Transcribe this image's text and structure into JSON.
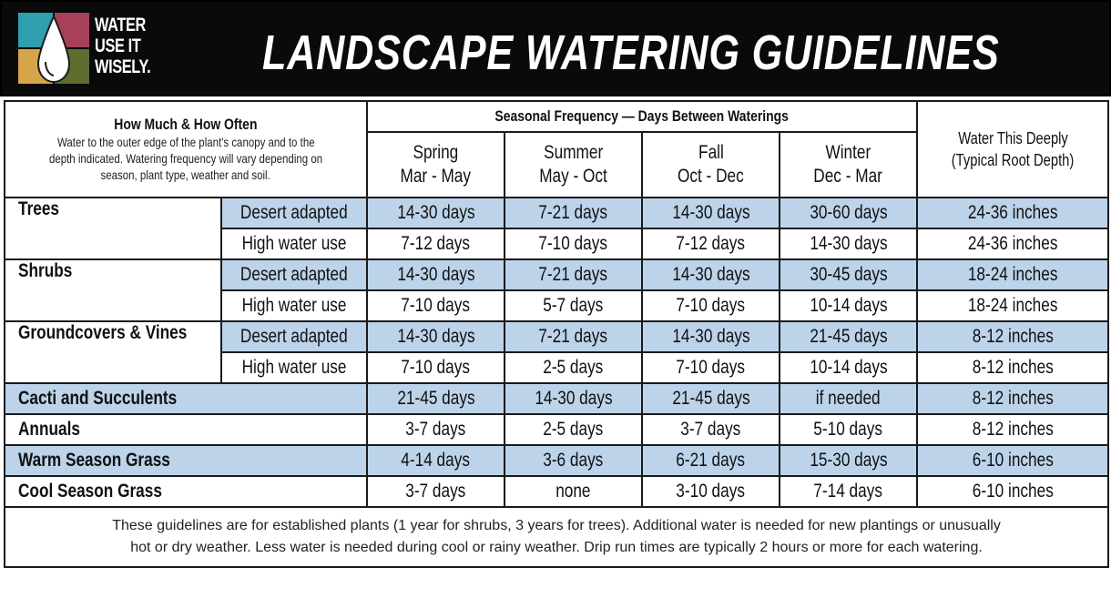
{
  "header": {
    "logo_lines": [
      "WATER",
      "USE IT",
      "WISELY."
    ],
    "logo_colors": [
      "#2f9fb0",
      "#a7405a",
      "#d6a548",
      "#5e6d2f"
    ],
    "title": "LANDSCAPE WATERING GUIDELINES"
  },
  "howmuch": {
    "title": "How Much & How Often",
    "lines": [
      "Water to the outer edge of the plant's canopy and to the",
      "depth indicated. Watering frequency will vary depending on",
      "season, plant type, weather and soil."
    ]
  },
  "seasonal": {
    "title": "Seasonal Frequency — Days Between Waterings",
    "seasons": [
      {
        "name": "Spring",
        "months": "Mar - May"
      },
      {
        "name": "Summer",
        "months": "May - Oct"
      },
      {
        "name": "Fall",
        "months": "Oct - Dec"
      },
      {
        "name": "Winter",
        "months": "Dec - Mar"
      }
    ]
  },
  "depth": {
    "title": "Water This Deeply",
    "subtitle": "(Typical Root Depth)"
  },
  "rows": {
    "trees": {
      "name": "Trees",
      "desert": {
        "label": "Desert adapted",
        "spring": "14-30 days",
        "summer": "7-21 days",
        "fall": "14-30 days",
        "winter": "30-60 days",
        "depth": "24-36 inches"
      },
      "high": {
        "label": "High water use",
        "spring": "7-12 days",
        "summer": "7-10 days",
        "fall": "7-12 days",
        "winter": "14-30 days",
        "depth": "24-36 inches"
      }
    },
    "shrubs": {
      "name": "Shrubs",
      "desert": {
        "label": "Desert adapted",
        "spring": "14-30 days",
        "summer": "7-21 days",
        "fall": "14-30 days",
        "winter": "30-45 days",
        "depth": "18-24 inches"
      },
      "high": {
        "label": "High water use",
        "spring": "7-10 days",
        "summer": "5-7 days",
        "fall": "7-10 days",
        "winter": "10-14 days",
        "depth": "18-24 inches"
      }
    },
    "ground": {
      "name": "Groundcovers & Vines",
      "desert": {
        "label": "Desert adapted",
        "spring": "14-30 days",
        "summer": "7-21 days",
        "fall": "14-30 days",
        "winter": "21-45 days",
        "depth": "8-12 inches"
      },
      "high": {
        "label": "High water use",
        "spring": "7-10 days",
        "summer": "2-5 days",
        "fall": "7-10 days",
        "winter": "10-14 days",
        "depth": "8-12 inches"
      }
    },
    "cacti": {
      "name": "Cacti and Succulents",
      "spring": "21-45 days",
      "summer": "14-30 days",
      "fall": "21-45 days",
      "winter": "if needed",
      "depth": "8-12 inches"
    },
    "annuals": {
      "name": "Annuals",
      "spring": "3-7 days",
      "summer": "2-5 days",
      "fall": "3-7 days",
      "winter": "5-10 days",
      "depth": "8-12 inches"
    },
    "warm": {
      "name": "Warm Season Grass",
      "spring": "4-14 days",
      "summer": "3-6 days",
      "fall": "6-21 days",
      "winter": "15-30 days",
      "depth": "6-10 inches"
    },
    "cool": {
      "name": "Cool Season Grass",
      "spring": "3-7 days",
      "summer": "none",
      "fall": "3-10 days",
      "winter": "7-14 days",
      "depth": "6-10 inches"
    }
  },
  "footer": {
    "line1": "These guidelines are for established plants (1 year for shrubs, 3 years for trees). Additional water is needed for new plantings or unusually",
    "line2": "hot or dry weather. Less water is needed during cool or rainy weather. Drip run times are typically 2 hours or more for each watering."
  }
}
